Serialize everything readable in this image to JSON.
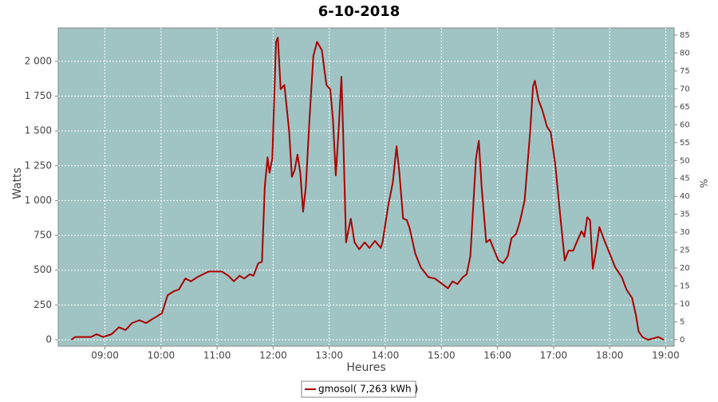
{
  "chart_data": {
    "type": "line",
    "title": "6-10-2018",
    "xlabel": "Heures",
    "ylabel": "Watts",
    "y2label": "%",
    "x": [
      "08:24",
      "08:28",
      "08:45",
      "08:51",
      "08:58",
      "09:07",
      "09:15",
      "09:22",
      "09:29",
      "09:37",
      "09:44",
      "09:51",
      "10:01",
      "10:07",
      "10:14",
      "10:19",
      "10:26",
      "10:32",
      "10:39",
      "10:51",
      "11:05",
      "11:12",
      "11:18",
      "11:24",
      "11:29",
      "11:35",
      "11:39",
      "11:44",
      "11:48",
      "11:51",
      "11:54",
      "11:56",
      "11:59",
      "12:03",
      "12:05",
      "12:08",
      "12:12",
      "12:17",
      "12:20",
      "12:23",
      "12:26",
      "12:29",
      "12:32",
      "12:35",
      "12:39",
      "12:43",
      "12:47",
      "12:52",
      "12:57",
      "13:01",
      "13:04",
      "13:07",
      "13:10",
      "13:13",
      "13:15",
      "13:18",
      "13:23",
      "13:27",
      "13:32",
      "13:38",
      "13:43",
      "13:49",
      "13:55",
      "13:57",
      "14:03",
      "14:08",
      "14:12",
      "14:15",
      "14:19",
      "14:23",
      "14:26",
      "14:32",
      "14:38",
      "14:46",
      "14:53",
      "15:01",
      "15:07",
      "15:12",
      "15:17",
      "15:23",
      "15:27",
      "15:31",
      "15:37",
      "15:40",
      "15:43",
      "15:48",
      "15:52",
      "15:56",
      "16:01",
      "16:06",
      "16:11",
      "16:15",
      "16:20",
      "16:24",
      "16:29",
      "16:35",
      "16:38",
      "16:40",
      "16:44",
      "16:48",
      "16:53",
      "16:57",
      "17:02",
      "17:07",
      "17:12",
      "17:16",
      "17:21",
      "17:26",
      "17:30",
      "17:33",
      "17:36",
      "17:39",
      "17:42",
      "17:45",
      "17:49",
      "17:54",
      "18:00",
      "18:06",
      "18:13",
      "18:18",
      "18:24",
      "18:28",
      "18:31",
      "18:35",
      "18:41",
      "18:47",
      "18:52",
      "18:55",
      "18:58"
    ],
    "series": [
      {
        "name": "gmosol( 7,263 kWh )",
        "color": "#aa0000",
        "values": [
          0,
          20,
          20,
          40,
          20,
          40,
          90,
          70,
          120,
          140,
          120,
          150,
          190,
          320,
          350,
          360,
          440,
          420,
          450,
          490,
          490,
          460,
          420,
          460,
          440,
          470,
          460,
          550,
          560,
          1100,
          1310,
          1200,
          1300,
          2140,
          2170,
          1800,
          1830,
          1500,
          1170,
          1220,
          1330,
          1200,
          920,
          1100,
          1600,
          2040,
          2140,
          2080,
          1830,
          1800,
          1580,
          1180,
          1500,
          1890,
          1450,
          700,
          870,
          700,
          650,
          700,
          660,
          710,
          660,
          700,
          960,
          1130,
          1390,
          1200,
          870,
          860,
          800,
          620,
          520,
          450,
          440,
          400,
          370,
          420,
          400,
          450,
          470,
          600,
          1300,
          1430,
          1100,
          700,
          720,
          650,
          570,
          550,
          600,
          730,
          760,
          850,
          1000,
          1500,
          1820,
          1860,
          1720,
          1650,
          1530,
          1490,
          1250,
          900,
          570,
          640,
          640,
          720,
          780,
          740,
          880,
          860,
          510,
          620,
          810,
          720,
          620,
          520,
          450,
          360,
          300,
          180,
          60,
          20,
          0,
          10,
          20,
          10,
          0
        ]
      }
    ],
    "xlim": [
      "08:10",
      "19:09"
    ],
    "xticks": [
      "09:00",
      "10:00",
      "11:00",
      "12:00",
      "13:00",
      "14:00",
      "15:00",
      "16:00",
      "17:00",
      "18:00",
      "19:00"
    ],
    "ylim": [
      -46,
      2240
    ],
    "yticks": [
      0,
      250,
      500,
      750,
      {
        "value": 1000,
        "label": "1 000"
      },
      {
        "value": 1250,
        "label": "1 250"
      },
      {
        "value": 1500,
        "label": "1 500"
      },
      {
        "value": 1750,
        "label": "1 750"
      },
      {
        "value": 2000,
        "label": "2 000"
      }
    ],
    "y2lim": [
      -1.8,
      87
    ],
    "y2ticks": [
      0,
      5,
      10,
      15,
      20,
      25,
      30,
      35,
      40,
      45,
      50,
      55,
      60,
      65,
      70,
      75,
      80,
      85
    ],
    "grid": true,
    "background": "#a0c4c4"
  }
}
